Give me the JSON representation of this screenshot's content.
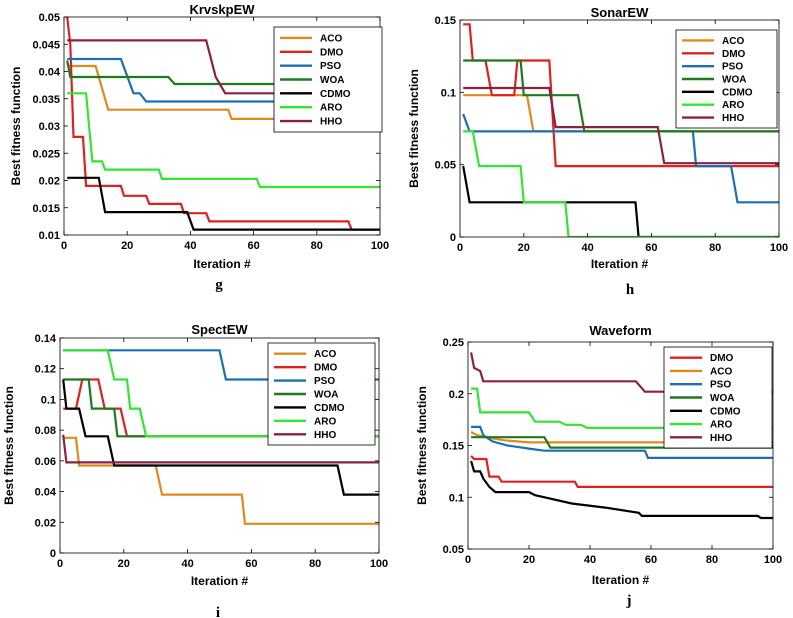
{
  "colors": {
    "ACO": "#e08a1e",
    "DMO": "#e02020",
    "PSO": "#1a6fb5",
    "WOA": "#1e7a1e",
    "CDMO": "#000000",
    "ARO": "#33e433",
    "HHO": "#8b2040"
  },
  "chart_data": [
    {
      "type": "line",
      "panel_label": "g",
      "title": "KrvskpEW",
      "xlabel": "Iteration #",
      "ylabel": "Best fitness function",
      "xlim": [
        0,
        100
      ],
      "ylim": [
        0.01,
        0.05
      ],
      "xticks": [
        0,
        20,
        40,
        60,
        80,
        100
      ],
      "yticks": [
        0.01,
        0.015,
        0.02,
        0.025,
        0.03,
        0.035,
        0.04,
        0.045,
        0.05
      ],
      "ytick_labels": [
        "0.01",
        "0.015",
        "0.02",
        "0.025",
        "0.03",
        "0.035",
        "0.04",
        "0.045",
        "0.05"
      ],
      "legend_position": "top-right",
      "legend": [
        "ACO",
        "DMO",
        "PSO",
        "WOA",
        "CDMO",
        "ARO",
        "HHO"
      ],
      "series": [
        {
          "name": "ACO",
          "points": [
            [
              1,
              0.041
            ],
            [
              10,
              0.041
            ],
            [
              14,
              0.033
            ],
            [
              52,
              0.033
            ],
            [
              53,
              0.0313
            ],
            [
              100,
              0.0313
            ]
          ]
        },
        {
          "name": "DMO",
          "points": [
            [
              1,
              0.05
            ],
            [
              2,
              0.045
            ],
            [
              3,
              0.028
            ],
            [
              6,
              0.028
            ],
            [
              7,
              0.019
            ],
            [
              18,
              0.019
            ],
            [
              19,
              0.0172
            ],
            [
              26,
              0.0172
            ],
            [
              27,
              0.0157
            ],
            [
              37,
              0.0157
            ],
            [
              38,
              0.014
            ],
            [
              45,
              0.014
            ],
            [
              46,
              0.0125
            ],
            [
              90,
              0.0125
            ],
            [
              91,
              0.011
            ],
            [
              100,
              0.011
            ]
          ]
        },
        {
          "name": "PSO",
          "points": [
            [
              1,
              0.0423
            ],
            [
              18,
              0.0423
            ],
            [
              22,
              0.036
            ],
            [
              24,
              0.036
            ],
            [
              26,
              0.0345
            ],
            [
              100,
              0.0345
            ]
          ]
        },
        {
          "name": "WOA",
          "points": [
            [
              1,
              0.042
            ],
            [
              2,
              0.039
            ],
            [
              33,
              0.039
            ],
            [
              35,
              0.0377
            ],
            [
              100,
              0.0377
            ]
          ]
        },
        {
          "name": "CDMO",
          "points": [
            [
              1,
              0.0205
            ],
            [
              11,
              0.0205
            ],
            [
              13,
              0.0142
            ],
            [
              39,
              0.0142
            ],
            [
              41,
              0.011
            ],
            [
              100,
              0.011
            ]
          ]
        },
        {
          "name": "ARO",
          "points": [
            [
              1,
              0.036
            ],
            [
              7,
              0.036
            ],
            [
              8,
              0.0295
            ],
            [
              9,
              0.0235
            ],
            [
              12,
              0.0235
            ],
            [
              13,
              0.022
            ],
            [
              30,
              0.022
            ],
            [
              31,
              0.0203
            ],
            [
              61,
              0.0203
            ],
            [
              62,
              0.0188
            ],
            [
              100,
              0.0188
            ]
          ]
        },
        {
          "name": "HHO",
          "points": [
            [
              1,
              0.0457
            ],
            [
              45,
              0.0457
            ],
            [
              48,
              0.039
            ],
            [
              51,
              0.036
            ],
            [
              100,
              0.036
            ]
          ]
        }
      ]
    },
    {
      "type": "line",
      "panel_label": "h",
      "title": "SonarEW",
      "xlabel": "Iteration #",
      "ylabel": "Best fitness function",
      "xlim": [
        0,
        100
      ],
      "ylim": [
        0,
        0.15
      ],
      "xticks": [
        0,
        20,
        40,
        60,
        80,
        100
      ],
      "yticks": [
        0,
        0.05,
        0.1,
        0.15
      ],
      "ytick_labels": [
        "0",
        "0.05",
        "0.1",
        "0.15"
      ],
      "legend_position": "top-right",
      "legend": [
        "ACO",
        "DMO",
        "PSO",
        "WOA",
        "CDMO",
        "ARO",
        "HHO"
      ],
      "series": [
        {
          "name": "ACO",
          "points": [
            [
              1,
              0.098
            ],
            [
              21,
              0.098
            ],
            [
              23,
              0.073
            ],
            [
              100,
              0.073
            ]
          ]
        },
        {
          "name": "DMO",
          "points": [
            [
              1,
              0.147
            ],
            [
              3,
              0.147
            ],
            [
              4,
              0.122
            ],
            [
              8,
              0.122
            ],
            [
              10,
              0.098
            ],
            [
              17,
              0.098
            ],
            [
              18,
              0.122
            ],
            [
              28,
              0.122
            ],
            [
              30,
              0.049
            ],
            [
              100,
              0.049
            ]
          ]
        },
        {
          "name": "PSO",
          "points": [
            [
              1,
              0.085
            ],
            [
              3,
              0.073
            ],
            [
              73,
              0.073
            ],
            [
              74,
              0.049
            ],
            [
              85,
              0.049
            ],
            [
              87,
              0.024
            ],
            [
              100,
              0.024
            ]
          ]
        },
        {
          "name": "WOA",
          "points": [
            [
              1,
              0.122
            ],
            [
              19,
              0.122
            ],
            [
              20,
              0.098
            ],
            [
              37,
              0.098
            ],
            [
              39,
              0.073
            ],
            [
              100,
              0.073
            ]
          ]
        },
        {
          "name": "CDMO",
          "points": [
            [
              1,
              0.049
            ],
            [
              3,
              0.024
            ],
            [
              55,
              0.024
            ],
            [
              56,
              0
            ],
            [
              100,
              0
            ]
          ]
        },
        {
          "name": "ARO",
          "points": [
            [
              1,
              0.073
            ],
            [
              4,
              0.073
            ],
            [
              6,
              0.049
            ],
            [
              19,
              0.049
            ],
            [
              20,
              0.024
            ],
            [
              33,
              0.024
            ],
            [
              34,
              0
            ],
            [
              100,
              0
            ]
          ]
        },
        {
          "name": "HHO",
          "points": [
            [
              1,
              0.103
            ],
            [
              28,
              0.103
            ],
            [
              30,
              0.076
            ],
            [
              62,
              0.076
            ],
            [
              64,
              0.051
            ],
            [
              100,
              0.051
            ]
          ]
        }
      ]
    },
    {
      "type": "line",
      "panel_label": "i",
      "title": "SpectEW",
      "xlabel": "Iteration #",
      "ylabel": "Best fitness function",
      "xlim": [
        0,
        100
      ],
      "ylim": [
        0,
        0.14
      ],
      "xticks": [
        0,
        20,
        40,
        60,
        80,
        100
      ],
      "yticks": [
        0,
        0.02,
        0.04,
        0.06,
        0.08,
        0.1,
        0.12,
        0.14
      ],
      "ytick_labels": [
        "0",
        "0.02",
        "0.04",
        "0.06",
        "0.08",
        "0.1",
        "0.12",
        "0.14"
      ],
      "legend_position": "top-right",
      "legend": [
        "ACO",
        "DMO",
        "PSO",
        "WOA",
        "CDMO",
        "ARO",
        "HHO"
      ],
      "series": [
        {
          "name": "ACO",
          "points": [
            [
              1,
              0.075
            ],
            [
              5,
              0.075
            ],
            [
              6,
              0.057
            ],
            [
              30,
              0.057
            ],
            [
              32,
              0.038
            ],
            [
              57,
              0.038
            ],
            [
              58,
              0.019
            ],
            [
              100,
              0.019
            ]
          ]
        },
        {
          "name": "DMO",
          "points": [
            [
              1,
              0.094
            ],
            [
              5,
              0.094
            ],
            [
              7,
              0.113
            ],
            [
              12,
              0.113
            ],
            [
              14,
              0.094
            ],
            [
              19,
              0.094
            ],
            [
              21,
              0.076
            ],
            [
              100,
              0.076
            ]
          ]
        },
        {
          "name": "PSO",
          "points": [
            [
              1,
              0.132
            ],
            [
              50,
              0.132
            ],
            [
              52,
              0.113
            ],
            [
              100,
              0.113
            ]
          ]
        },
        {
          "name": "WOA",
          "points": [
            [
              1,
              0.113
            ],
            [
              9,
              0.113
            ],
            [
              10,
              0.094
            ],
            [
              17,
              0.094
            ],
            [
              18,
              0.076
            ],
            [
              100,
              0.076
            ]
          ]
        },
        {
          "name": "CDMO",
          "points": [
            [
              1,
              0.113
            ],
            [
              2,
              0.094
            ],
            [
              6,
              0.094
            ],
            [
              8,
              0.076
            ],
            [
              15,
              0.076
            ],
            [
              17,
              0.057
            ],
            [
              87,
              0.057
            ],
            [
              89,
              0.038
            ],
            [
              100,
              0.038
            ]
          ]
        },
        {
          "name": "ARO",
          "points": [
            [
              1,
              0.132
            ],
            [
              15,
              0.132
            ],
            [
              17,
              0.113
            ],
            [
              21,
              0.113
            ],
            [
              22,
              0.094
            ],
            [
              25,
              0.094
            ],
            [
              27,
              0.076
            ],
            [
              100,
              0.076
            ]
          ]
        },
        {
          "name": "HHO",
          "points": [
            [
              1,
              0.077
            ],
            [
              2,
              0.059
            ],
            [
              100,
              0.059
            ]
          ]
        }
      ]
    },
    {
      "type": "line",
      "panel_label": "j",
      "title": "Waveform",
      "xlabel": "Iteration #",
      "ylabel": "Best fitness function",
      "xlim": [
        0,
        100
      ],
      "ylim": [
        0.05,
        0.25
      ],
      "xticks": [
        0,
        20,
        40,
        60,
        80,
        100
      ],
      "yticks": [
        0.05,
        0.1,
        0.15,
        0.2,
        0.25
      ],
      "ytick_labels": [
        "0.05",
        "0.1",
        "0.15",
        "0.2",
        "0.25"
      ],
      "legend_position": "top-right",
      "legend": [
        "DMO",
        "ACO",
        "PSO",
        "WOA",
        "CDMO",
        "ARO",
        "HHO"
      ],
      "series": [
        {
          "name": "DMO",
          "points": [
            [
              1,
              0.14
            ],
            [
              2,
              0.137
            ],
            [
              6,
              0.137
            ],
            [
              7,
              0.12
            ],
            [
              10,
              0.12
            ],
            [
              11,
              0.115
            ],
            [
              35,
              0.115
            ],
            [
              36,
              0.11
            ],
            [
              100,
              0.11
            ]
          ]
        },
        {
          "name": "ACO",
          "points": [
            [
              1,
              0.163
            ],
            [
              3,
              0.16
            ],
            [
              8,
              0.157
            ],
            [
              12,
              0.155
            ],
            [
              20,
              0.153
            ],
            [
              100,
              0.153
            ]
          ]
        },
        {
          "name": "PSO",
          "points": [
            [
              1,
              0.168
            ],
            [
              4,
              0.168
            ],
            [
              5,
              0.16
            ],
            [
              8,
              0.154
            ],
            [
              13,
              0.15
            ],
            [
              20,
              0.147
            ],
            [
              25,
              0.145
            ],
            [
              58,
              0.145
            ],
            [
              59,
              0.138
            ],
            [
              100,
              0.138
            ]
          ]
        },
        {
          "name": "WOA",
          "points": [
            [
              1,
              0.158
            ],
            [
              25,
              0.158
            ],
            [
              27,
              0.148
            ],
            [
              100,
              0.148
            ]
          ]
        },
        {
          "name": "CDMO",
          "points": [
            [
              1,
              0.135
            ],
            [
              2,
              0.125
            ],
            [
              4,
              0.125
            ],
            [
              5,
              0.118
            ],
            [
              7,
              0.11
            ],
            [
              9,
              0.105
            ],
            [
              20,
              0.105
            ],
            [
              22,
              0.102
            ],
            [
              28,
              0.098
            ],
            [
              34,
              0.094
            ],
            [
              45,
              0.09
            ],
            [
              56,
              0.085
            ],
            [
              57,
              0.082
            ],
            [
              95,
              0.082
            ],
            [
              96,
              0.08
            ],
            [
              100,
              0.08
            ]
          ]
        },
        {
          "name": "ARO",
          "points": [
            [
              1,
              0.205
            ],
            [
              3,
              0.205
            ],
            [
              4,
              0.182
            ],
            [
              20,
              0.182
            ],
            [
              22,
              0.173
            ],
            [
              30,
              0.173
            ],
            [
              32,
              0.17
            ],
            [
              37,
              0.17
            ],
            [
              39,
              0.167
            ],
            [
              100,
              0.167
            ]
          ]
        },
        {
          "name": "HHO",
          "points": [
            [
              1,
              0.24
            ],
            [
              2,
              0.225
            ],
            [
              4,
              0.222
            ],
            [
              5,
              0.212
            ],
            [
              55,
              0.212
            ],
            [
              58,
              0.202
            ],
            [
              100,
              0.202
            ]
          ]
        }
      ]
    }
  ]
}
